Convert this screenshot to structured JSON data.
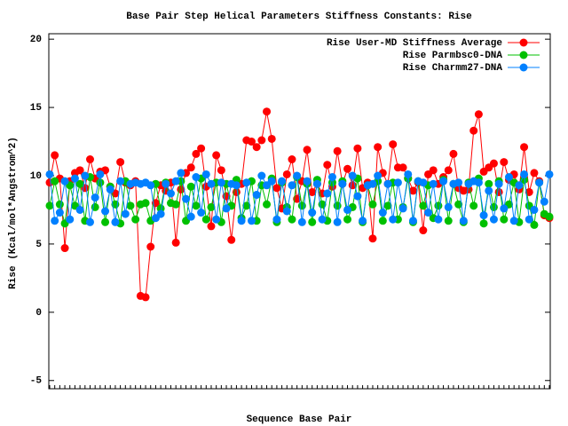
{
  "chart_data": {
    "type": "line",
    "title": "Base Pair Step Helical Parameters Stiffness Constants: Rise",
    "x_label": "Sequence Base Pair",
    "y_label": "Rise (Kcal/mol*Angstrom^2)",
    "ylim": [
      -5.6,
      20.4
    ],
    "yticks": [
      -5,
      0,
      5,
      10,
      15,
      20
    ],
    "legend": "upper right",
    "categories": [
      null,
      null,
      null,
      null,
      null,
      null,
      null,
      null,
      null,
      null,
      null,
      null,
      null,
      null,
      null,
      null,
      null,
      null,
      null,
      null,
      null,
      null,
      null,
      null,
      null,
      null,
      null,
      null,
      null,
      null,
      null,
      null,
      null,
      null,
      null,
      null,
      null,
      null,
      null,
      null,
      null,
      null,
      null,
      null,
      null,
      null,
      null,
      null,
      null,
      null,
      null,
      null,
      null,
      null,
      null,
      null,
      null,
      null,
      null,
      null,
      null,
      null,
      null,
      null,
      null,
      null,
      null,
      null,
      null,
      null,
      null,
      null,
      null,
      null,
      null,
      null,
      null,
      null,
      null,
      null,
      null,
      null,
      null,
      null,
      null,
      null,
      null,
      null,
      null,
      null,
      null,
      null,
      null,
      null,
      null,
      null,
      null,
      null,
      null,
      null
    ],
    "series": [
      {
        "name": "Rise User-MD Stiffness Average",
        "color": "#ff0000",
        "values": [
          9.5,
          11.5,
          9.8,
          4.7,
          9.6,
          10.2,
          10.4,
          9.1,
          11.2,
          9.8,
          10.3,
          10.4,
          9.2,
          8.7,
          11.0,
          9.5,
          9.3,
          9.6,
          1.2,
          1.1,
          4.8,
          8.0,
          9.3,
          8.9,
          9.5,
          5.1,
          9.0,
          10.2,
          10.6,
          11.6,
          12.0,
          9.2,
          6.3,
          11.5,
          10.4,
          8.5,
          5.3,
          8.8,
          9.4,
          12.6,
          12.5,
          12.1,
          12.6,
          14.7,
          12.7,
          9.1,
          7.6,
          10.1,
          11.2,
          8.3,
          9.6,
          11.9,
          8.8,
          9.4,
          8.7,
          10.8,
          9.2,
          11.8,
          9.4,
          10.5,
          9.3,
          12.0,
          9.1,
          9.5,
          5.4,
          12.1,
          10.2,
          9.4,
          12.3,
          10.6,
          10.6,
          9.8,
          8.9,
          9.5,
          6.0,
          10.1,
          10.4,
          9.4,
          9.9,
          10.4,
          11.6,
          9.1,
          8.9,
          9.0,
          13.3,
          14.5,
          10.3,
          10.6,
          10.9,
          8.8,
          11.0,
          9.7,
          10.1,
          9.0,
          12.1,
          8.8,
          10.2,
          9.6,
          7.1,
          6.9
        ]
      },
      {
        "name": "Rise Parmbsc0-DNA",
        "color": "#00c000",
        "values": [
          7.8,
          9.6,
          7.9,
          6.5,
          9.3,
          7.8,
          9.4,
          6.7,
          9.9,
          7.7,
          9.5,
          6.6,
          9.2,
          7.9,
          6.5,
          9.6,
          7.8,
          6.8,
          7.9,
          8.0,
          6.7,
          9.4,
          7.6,
          9.5,
          8.0,
          7.9,
          9.6,
          6.7,
          9.2,
          7.8,
          9.8,
          6.8,
          7.7,
          9.5,
          6.6,
          9.4,
          7.8,
          9.7,
          6.9,
          7.8,
          9.6,
          6.7,
          9.3,
          7.9,
          9.8,
          6.6,
          9.5,
          7.7,
          6.8,
          9.9,
          7.8,
          9.4,
          6.6,
          9.7,
          7.9,
          6.7,
          9.5,
          7.8,
          9.6,
          6.8,
          7.7,
          9.8,
          6.6,
          9.3,
          7.9,
          9.6,
          6.7,
          7.8,
          9.5,
          6.8,
          7.7,
          9.8,
          6.6,
          9.6,
          7.8,
          9.3,
          6.9,
          7.8,
          9.7,
          6.7,
          9.4,
          7.9,
          6.6,
          9.5,
          7.8,
          9.8,
          6.5,
          9.4,
          7.7,
          9.6,
          6.8,
          7.9,
          9.5,
          6.6,
          9.7,
          7.8,
          6.4,
          9.5,
          7.2,
          7.0
        ]
      },
      {
        "name": "Rise Charmm27-DNA",
        "color": "#0080ff",
        "values": [
          10.1,
          6.7,
          7.3,
          9.6,
          6.8,
          9.8,
          7.5,
          10.0,
          6.6,
          8.4,
          10.1,
          7.4,
          9.0,
          6.6,
          9.6,
          7.2,
          9.4,
          9.5,
          9.4,
          9.5,
          9.3,
          6.9,
          7.2,
          9.4,
          8.7,
          9.6,
          10.2,
          8.3,
          7.0,
          9.9,
          7.3,
          10.1,
          9.4,
          6.8,
          9.5,
          7.6,
          9.4,
          9.3,
          6.7,
          9.5,
          6.7,
          8.6,
          10.0,
          9.3,
          9.6,
          6.8,
          9.6,
          7.4,
          9.3,
          10.0,
          6.6,
          9.6,
          7.3,
          9.4,
          6.8,
          8.7,
          9.9,
          6.6,
          9.4,
          7.5,
          10.0,
          8.5,
          6.7,
          9.3,
          9.4,
          10.0,
          7.3,
          9.4,
          6.8,
          9.5,
          7.6,
          10.1,
          6.7,
          9.6,
          9.5,
          7.3,
          9.4,
          6.8,
          9.6,
          7.7,
          9.4,
          9.5,
          6.7,
          9.4,
          9.6,
          9.5,
          7.1,
          8.9,
          6.8,
          9.4,
          7.6,
          9.9,
          6.7,
          9.3,
          10.1,
          6.8,
          7.5,
          9.5,
          8.1,
          10.1
        ]
      }
    ]
  }
}
